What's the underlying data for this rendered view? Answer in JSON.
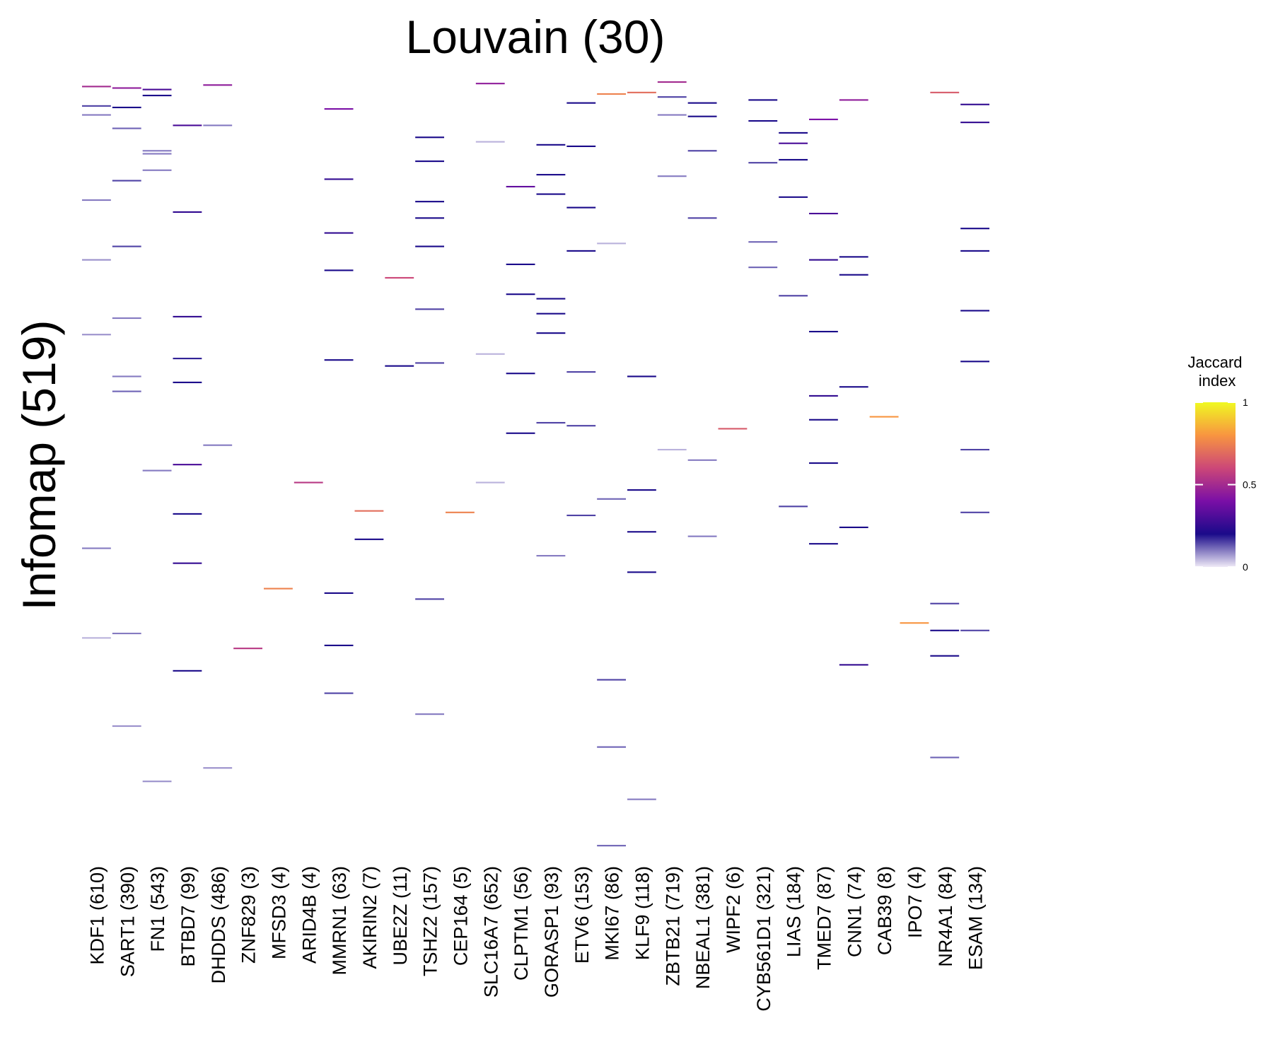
{
  "chart_data": {
    "type": "heatmap",
    "title": "Louvain (30)",
    "y_label": "Infomap (519)",
    "rows": 519,
    "categories": [
      "KDF1 (610)",
      "SART1 (390)",
      "FN1 (543)",
      "BTBD7 (99)",
      "DHDDS (486)",
      "ZNF829 (3)",
      "MFSD3 (4)",
      "ARID4B (4)",
      "MMRN1 (63)",
      "AKIRIN2 (7)",
      "UBE2Z (11)",
      "TSHZ2 (157)",
      "CEP164 (5)",
      "SLC16A7 (652)",
      "CLPTM1 (56)",
      "GORASP1 (93)",
      "ETV6 (153)",
      "MKI67 (86)",
      "KLF9 (118)",
      "ZBTB21 (719)",
      "NBEAL1 (381)",
      "WIPF2 (6)",
      "CYB561D1 (321)",
      "LIAS (184)",
      "TMED7 (87)",
      "CNN1 (74)",
      "CAB39 (8)",
      "IPO7 (4)",
      "NR4A1 (84)",
      "ESAM (134)"
    ],
    "cells": [
      [
        0,
        3,
        0.5
      ],
      [
        0,
        16,
        0.15
      ],
      [
        0,
        22,
        0.1
      ],
      [
        0,
        79,
        0.1
      ],
      [
        0,
        119,
        0.08
      ],
      [
        0,
        169,
        0.08
      ],
      [
        0,
        312,
        0.1
      ],
      [
        0,
        372,
        0.05
      ],
      [
        1,
        4,
        0.45
      ],
      [
        1,
        17,
        0.2
      ],
      [
        1,
        31,
        0.12
      ],
      [
        1,
        66,
        0.15
      ],
      [
        1,
        110,
        0.15
      ],
      [
        1,
        158,
        0.1
      ],
      [
        1,
        197,
        0.1
      ],
      [
        1,
        207,
        0.12
      ],
      [
        1,
        369,
        0.1
      ],
      [
        1,
        431,
        0.08
      ],
      [
        2,
        5,
        0.3
      ],
      [
        2,
        9,
        0.2
      ],
      [
        2,
        46,
        0.1
      ],
      [
        2,
        48,
        0.1
      ],
      [
        2,
        59,
        0.1
      ],
      [
        2,
        260,
        0.1
      ],
      [
        2,
        468,
        0.08
      ],
      [
        3,
        29,
        0.3
      ],
      [
        3,
        87,
        0.25
      ],
      [
        3,
        157,
        0.25
      ],
      [
        3,
        185,
        0.18
      ],
      [
        3,
        201,
        0.2
      ],
      [
        3,
        256,
        0.3
      ],
      [
        3,
        289,
        0.2
      ],
      [
        3,
        322,
        0.25
      ],
      [
        3,
        394,
        0.2
      ],
      [
        4,
        2,
        0.45
      ],
      [
        4,
        29,
        0.1
      ],
      [
        4,
        243,
        0.1
      ],
      [
        4,
        459,
        0.08
      ],
      [
        5,
        379,
        0.55
      ],
      [
        6,
        339,
        0.75
      ],
      [
        7,
        268,
        0.55
      ],
      [
        8,
        18,
        0.4
      ],
      [
        8,
        65,
        0.25
      ],
      [
        8,
        101,
        0.25
      ],
      [
        8,
        126,
        0.2
      ],
      [
        8,
        186,
        0.2
      ],
      [
        8,
        342,
        0.2
      ],
      [
        8,
        377,
        0.2
      ],
      [
        8,
        409,
        0.15
      ],
      [
        9,
        287,
        0.7
      ],
      [
        9,
        306,
        0.2
      ],
      [
        10,
        131,
        0.6
      ],
      [
        10,
        190,
        0.2
      ],
      [
        11,
        37,
        0.2
      ],
      [
        11,
        53,
        0.2
      ],
      [
        11,
        80,
        0.2
      ],
      [
        11,
        91,
        0.2
      ],
      [
        11,
        110,
        0.2
      ],
      [
        11,
        152,
        0.15
      ],
      [
        11,
        188,
        0.15
      ],
      [
        11,
        346,
        0.15
      ],
      [
        11,
        423,
        0.1
      ],
      [
        12,
        288,
        0.75
      ],
      [
        13,
        1,
        0.45
      ],
      [
        13,
        40,
        0.05
      ],
      [
        13,
        182,
        0.05
      ],
      [
        13,
        268,
        0.05
      ],
      [
        14,
        70,
        0.35
      ],
      [
        14,
        122,
        0.2
      ],
      [
        14,
        142,
        0.2
      ],
      [
        14,
        195,
        0.2
      ],
      [
        14,
        235,
        0.2
      ],
      [
        15,
        42,
        0.2
      ],
      [
        15,
        62,
        0.2
      ],
      [
        15,
        75,
        0.2
      ],
      [
        15,
        145,
        0.2
      ],
      [
        15,
        155,
        0.2
      ],
      [
        15,
        168,
        0.2
      ],
      [
        15,
        228,
        0.15
      ],
      [
        15,
        317,
        0.1
      ],
      [
        16,
        14,
        0.2
      ],
      [
        16,
        43,
        0.2
      ],
      [
        16,
        84,
        0.2
      ],
      [
        16,
        113,
        0.2
      ],
      [
        16,
        194,
        0.15
      ],
      [
        16,
        230,
        0.15
      ],
      [
        16,
        290,
        0.15
      ],
      [
        17,
        8,
        0.75
      ],
      [
        17,
        108,
        0.05
      ],
      [
        17,
        279,
        0.12
      ],
      [
        17,
        400,
        0.15
      ],
      [
        17,
        445,
        0.12
      ],
      [
        17,
        511,
        0.12
      ],
      [
        18,
        7,
        0.7
      ],
      [
        18,
        197,
        0.2
      ],
      [
        18,
        273,
        0.2
      ],
      [
        18,
        301,
        0.2
      ],
      [
        18,
        328,
        0.2
      ],
      [
        18,
        480,
        0.1
      ],
      [
        19,
        0,
        0.5
      ],
      [
        19,
        10,
        0.15
      ],
      [
        19,
        22,
        0.1
      ],
      [
        19,
        63,
        0.1
      ],
      [
        19,
        246,
        0.05
      ],
      [
        20,
        14,
        0.2
      ],
      [
        20,
        23,
        0.2
      ],
      [
        20,
        46,
        0.15
      ],
      [
        20,
        91,
        0.15
      ],
      [
        20,
        253,
        0.1
      ],
      [
        20,
        304,
        0.1
      ],
      [
        21,
        232,
        0.65
      ],
      [
        22,
        12,
        0.2
      ],
      [
        22,
        26,
        0.2
      ],
      [
        22,
        54,
        0.15
      ],
      [
        22,
        107,
        0.12
      ],
      [
        22,
        124,
        0.12
      ],
      [
        23,
        34,
        0.2
      ],
      [
        23,
        41,
        0.3
      ],
      [
        23,
        52,
        0.2
      ],
      [
        23,
        77,
        0.2
      ],
      [
        23,
        143,
        0.15
      ],
      [
        23,
        284,
        0.15
      ],
      [
        24,
        25,
        0.4
      ],
      [
        24,
        88,
        0.3
      ],
      [
        24,
        119,
        0.25
      ],
      [
        24,
        167,
        0.2
      ],
      [
        24,
        210,
        0.25
      ],
      [
        24,
        226,
        0.2
      ],
      [
        24,
        255,
        0.2
      ],
      [
        24,
        309,
        0.2
      ],
      [
        25,
        12,
        0.45
      ],
      [
        25,
        117,
        0.2
      ],
      [
        25,
        129,
        0.2
      ],
      [
        25,
        204,
        0.2
      ],
      [
        25,
        298,
        0.2
      ],
      [
        25,
        390,
        0.25
      ],
      [
        26,
        224,
        0.8
      ],
      [
        27,
        362,
        0.8
      ],
      [
        28,
        7,
        0.65
      ],
      [
        28,
        349,
        0.15
      ],
      [
        28,
        367,
        0.2
      ],
      [
        28,
        384,
        0.2
      ],
      [
        28,
        452,
        0.12
      ],
      [
        29,
        15,
        0.25
      ],
      [
        29,
        27,
        0.25
      ],
      [
        29,
        98,
        0.2
      ],
      [
        29,
        113,
        0.2
      ],
      [
        29,
        153,
        0.2
      ],
      [
        29,
        187,
        0.2
      ],
      [
        29,
        246,
        0.15
      ],
      [
        29,
        288,
        0.15
      ],
      [
        29,
        367,
        0.15
      ]
    ],
    "legend_title": "Jaccard\n index",
    "zlim": [
      0,
      1
    ],
    "zticks": [
      0,
      0.5,
      1
    ],
    "colors": [
      "#efeaf7",
      "#1a0a8a",
      "#7a0fa6",
      "#cc4778",
      "#f89540",
      "#f0f921"
    ]
  }
}
